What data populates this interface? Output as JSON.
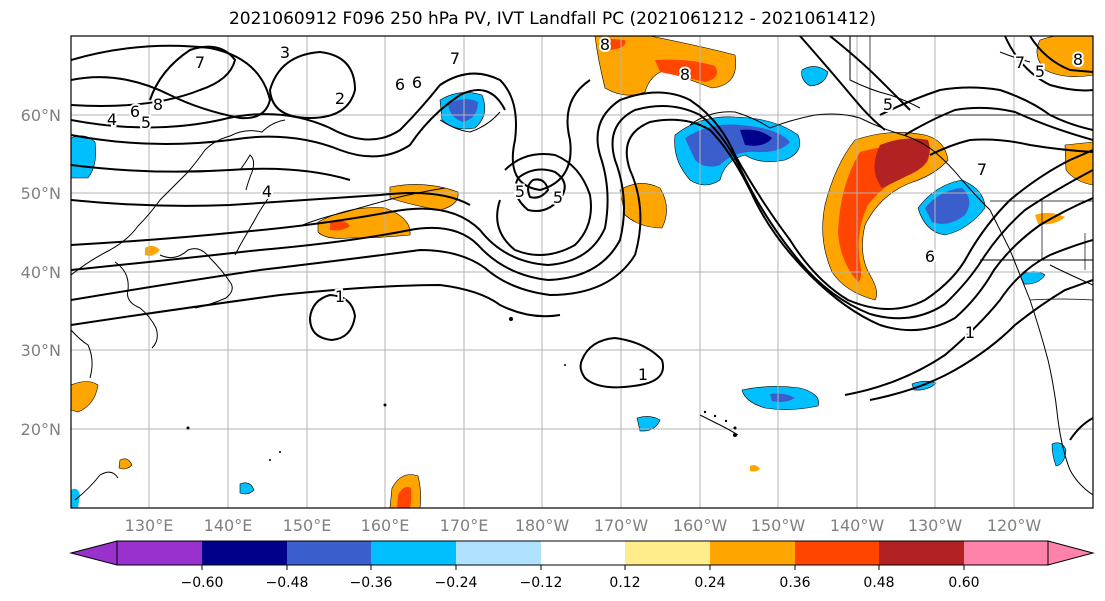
{
  "title": "2021060912 F096 250 hPa PV, IVT Landfall PC (2021061212 - 2021061412)",
  "lat_labels": [
    "60°N",
    "50°N",
    "40°N",
    "30°N",
    "20°N"
  ],
  "lon_labels": [
    "130°E",
    "140°E",
    "150°E",
    "160°E",
    "170°E",
    "180°W",
    "170°W",
    "160°W",
    "150°W",
    "140°W",
    "130°W",
    "120°W"
  ],
  "colorbar": {
    "colors": [
      "#9932cc",
      "#00008b",
      "#3a5fcd",
      "#00bfff",
      "#b0e2ff",
      "#ffffff",
      "#ffec8b",
      "#ffa500",
      "#ff4500",
      "#b22222",
      "#ff82ab"
    ],
    "tick_labels": [
      "−0.60",
      "−0.48",
      "−0.36",
      "−0.24",
      "−0.12",
      "0.12",
      "0.24",
      "0.36",
      "0.48",
      "0.60"
    ]
  },
  "contour_labels": [
    "7",
    "3",
    "8",
    "6",
    "5",
    "2",
    "4",
    "6",
    "7",
    "8",
    "4",
    "5",
    "1",
    "1",
    "8",
    "7",
    "5",
    "6",
    "1",
    "7",
    "6",
    "5",
    "5",
    "8"
  ]
}
